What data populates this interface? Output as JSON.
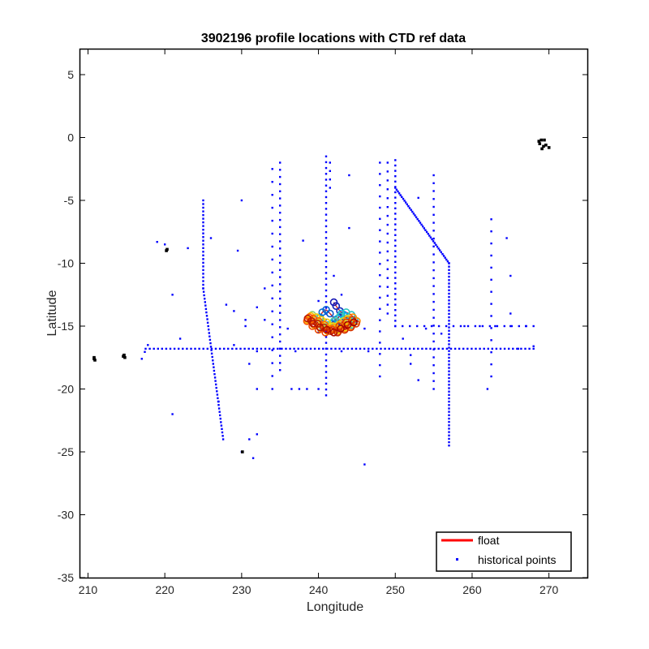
{
  "chart_data": {
    "type": "scatter",
    "title": "3902196 profile locations with CTD ref data",
    "xlabel": "Longitude",
    "ylabel": "Latitude",
    "xlim": [
      209,
      275
    ],
    "ylim": [
      -35,
      7
    ],
    "xticks": [
      210,
      220,
      230,
      240,
      250,
      260,
      270
    ],
    "yticks": [
      5,
      0,
      -5,
      -10,
      -15,
      -20,
      -25,
      -30,
      -35
    ],
    "grid": false,
    "legend": {
      "placement": "bottom-right",
      "entries": [
        {
          "label": "float",
          "color": "#ff0000",
          "style": "line"
        },
        {
          "label": "historical points",
          "color": "#0000ff",
          "style": "marker"
        }
      ]
    },
    "historical_color": "#0000ff",
    "coast_color": "#000000",
    "historical_segments": [
      {
        "from": [
          217.5,
          -16.8
        ],
        "to": [
          268,
          -16.8
        ],
        "n": 95
      },
      {
        "from": [
          217,
          -17.6
        ],
        "to": [
          217.8,
          -16.5
        ],
        "n": 3
      },
      {
        "from": [
          225,
          -5
        ],
        "to": [
          225,
          -12
        ],
        "n": 25
      },
      {
        "from": [
          225,
          -12
        ],
        "to": [
          227.6,
          -24
        ],
        "n": 45
      },
      {
        "from": [
          234,
          -2.5
        ],
        "to": [
          234,
          -20
        ],
        "n": 18
      },
      {
        "from": [
          235,
          -2
        ],
        "to": [
          235,
          -18.5
        ],
        "n": 30
      },
      {
        "from": [
          241,
          -1.5
        ],
        "to": [
          241,
          -20.5
        ],
        "n": 42
      },
      {
        "from": [
          241.5,
          -2
        ],
        "to": [
          241.5,
          -4
        ],
        "n": 4
      },
      {
        "from": [
          248,
          -2
        ],
        "to": [
          248,
          -19
        ],
        "n": 20
      },
      {
        "from": [
          249,
          -2
        ],
        "to": [
          249,
          -14
        ],
        "n": 18
      },
      {
        "from": [
          250,
          -1.8
        ],
        "to": [
          250,
          -15
        ],
        "n": 32
      },
      {
        "from": [
          250,
          -4
        ],
        "to": [
          257,
          -10
        ],
        "n": 42
      },
      {
        "from": [
          257,
          -10
        ],
        "to": [
          257,
          -24.5
        ],
        "n": 55
      },
      {
        "from": [
          255,
          -3
        ],
        "to": [
          255,
          -20
        ],
        "n": 28
      },
      {
        "from": [
          262.5,
          -6.5
        ],
        "to": [
          262.5,
          -19
        ],
        "n": 14
      },
      {
        "from": [
          250,
          -15
        ],
        "to": [
          268,
          -15
        ],
        "n": 20
      }
    ],
    "historical_points": [
      [
        219,
        -8.3
      ],
      [
        220,
        -8.5
      ],
      [
        221,
        -12.5
      ],
      [
        221,
        -22
      ],
      [
        223,
        -8.8
      ],
      [
        228,
        -13.3
      ],
      [
        229.5,
        -9
      ],
      [
        229,
        -13.8
      ],
      [
        230,
        -5
      ],
      [
        230.5,
        -14.5
      ],
      [
        230.5,
        -15
      ],
      [
        232,
        -13.5
      ],
      [
        233,
        -14.5
      ],
      [
        231,
        -18
      ],
      [
        232,
        -20
      ],
      [
        233,
        -12
      ],
      [
        232,
        -23.6
      ],
      [
        231.5,
        -25.5
      ],
      [
        230,
        -25
      ],
      [
        236.5,
        -20
      ],
      [
        237.5,
        -20
      ],
      [
        238.5,
        -20
      ],
      [
        240,
        -20
      ],
      [
        238,
        -8.2
      ],
      [
        240,
        -15.5
      ],
      [
        244,
        -3
      ],
      [
        244,
        -7.2
      ],
      [
        246,
        -26
      ],
      [
        246,
        -15.2
      ],
      [
        253,
        -4.8
      ],
      [
        252,
        -18
      ],
      [
        253,
        -19.3
      ],
      [
        246.5,
        -17
      ],
      [
        237,
        -17
      ],
      [
        243,
        -17
      ],
      [
        264.5,
        -8
      ],
      [
        265,
        -11
      ],
      [
        265,
        -14
      ],
      [
        262,
        -20
      ],
      [
        229,
        -16.5
      ],
      [
        232,
        -17
      ],
      [
        222,
        -16
      ],
      [
        236,
        -15.2
      ],
      [
        259,
        -15
      ],
      [
        261,
        -15
      ],
      [
        263,
        -15
      ],
      [
        265,
        -15
      ],
      [
        267,
        -15
      ],
      [
        266,
        -16.8
      ],
      [
        268,
        -16.6
      ],
      [
        254,
        -15.2
      ],
      [
        256,
        -15.6
      ],
      [
        251,
        -16
      ],
      [
        252,
        -17.3
      ],
      [
        242,
        -11
      ],
      [
        243,
        -12.5
      ],
      [
        240,
        -13
      ],
      [
        226,
        -8
      ],
      [
        227,
        -21
      ],
      [
        231,
        -24
      ]
    ],
    "coast_points": [
      [
        210.8,
        -17.5
      ],
      [
        210.9,
        -17.7
      ],
      [
        210.8,
        -17.6
      ],
      [
        214.7,
        -17.3
      ],
      [
        214.8,
        -17.5
      ],
      [
        214.6,
        -17.4
      ],
      [
        220.2,
        -9.0
      ],
      [
        220.3,
        -8.9
      ],
      [
        230.1,
        -25.0
      ],
      [
        269,
        -0.2
      ],
      [
        268.8,
        -0.5
      ],
      [
        269.3,
        -0.7
      ],
      [
        269.1,
        -0.9
      ],
      [
        269.6,
        -0.6
      ],
      [
        270,
        -0.8
      ],
      [
        268.7,
        -0.3
      ],
      [
        269.4,
        -0.2
      ]
    ],
    "float_track": {
      "lon": [
        242.0,
        242.3,
        242.8,
        243.3,
        243.6,
        243.0,
        242.2,
        241.5,
        241.0,
        240.5,
        240.2,
        240.6,
        241.2,
        241.8,
        242.5,
        243.0,
        243.5,
        244.0,
        244.4,
        244.7,
        244.3,
        243.6,
        242.8,
        242.0,
        241.3,
        240.6,
        240.0,
        239.5,
        239.2,
        239.8,
        240.5,
        241.2,
        241.9,
        242.6,
        243.2,
        243.8,
        244.2,
        243.5,
        242.7,
        241.9,
        241.1,
        240.4,
        239.7,
        239.0,
        238.6,
        239.4,
        240.3,
        241.2,
        242.1,
        242.9,
        243.7,
        244.5,
        245.0,
        244.3,
        243.5,
        242.6,
        241.7,
        240.8,
        240.0,
        239.3,
        238.8,
        238.5,
        239.2,
        240.0,
        240.9,
        241.8,
        242.7,
        243.6,
        244.4,
        244.9,
        244.2,
        243.4,
        242.5,
        241.6,
        240.7,
        239.9,
        239.1,
        238.6,
        239.3,
        240.2,
        241.1,
        242.0,
        242.9,
        243.8,
        244.6
      ],
      "lat": [
        -13.1,
        -13.4,
        -13.8,
        -14.1,
        -14.5,
        -14.7,
        -14.5,
        -14.0,
        -13.7,
        -13.9,
        -14.3,
        -14.8,
        -15.0,
        -14.8,
        -14.4,
        -14.0,
        -14.2,
        -14.6,
        -14.9,
        -14.5,
        -14.1,
        -13.9,
        -14.2,
        -14.6,
        -14.9,
        -15.1,
        -14.8,
        -14.4,
        -14.1,
        -14.3,
        -14.7,
        -15.0,
        -15.2,
        -14.9,
        -14.6,
        -14.4,
        -14.8,
        -15.1,
        -15.3,
        -15.0,
        -14.7,
        -14.5,
        -14.3,
        -14.2,
        -14.5,
        -14.9,
        -15.2,
        -15.4,
        -15.1,
        -14.8,
        -14.5,
        -14.3,
        -14.6,
        -15.0,
        -15.2,
        -15.4,
        -15.2,
        -14.9,
        -14.6,
        -14.4,
        -14.3,
        -14.6,
        -15.0,
        -15.3,
        -15.5,
        -15.3,
        -15.0,
        -14.7,
        -14.5,
        -14.8,
        -15.1,
        -15.3,
        -15.5,
        -15.4,
        -15.1,
        -14.8,
        -14.6,
        -14.4,
        -14.8,
        -15.1,
        -15.3,
        -15.5,
        -15.2,
        -14.9,
        -14.7
      ]
    }
  }
}
